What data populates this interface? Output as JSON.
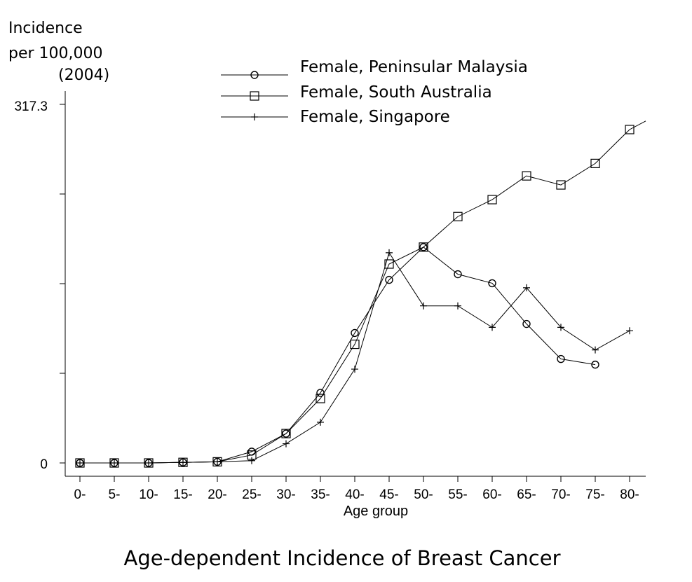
{
  "chart_data": {
    "type": "line",
    "title": "Age-dependent Incidence of Breast Cancer",
    "xlabel": "Age group",
    "ylabel_lines": [
      "Incidence",
      "per 100,000",
      "(2004)"
    ],
    "y_tick_labels": [
      "317.3",
      "0"
    ],
    "ylim": [
      0,
      317.3
    ],
    "grid": false,
    "legend_position": "top-center",
    "categories": [
      "0-",
      "5-",
      "10-",
      "15-",
      "20-",
      "25-",
      "30-",
      "35-",
      "40-",
      "45-",
      "50-",
      "55-",
      "60-",
      "65-",
      "70-",
      "75-",
      "80-"
    ],
    "series": [
      {
        "name": "Female, Peninsular Malaysia",
        "marker": "circle",
        "values": [
          0,
          0,
          0,
          0.5,
          1,
          10,
          26,
          62,
          115,
          162,
          191,
          167,
          159,
          123,
          92,
          87,
          null
        ]
      },
      {
        "name": "Female, South Australia",
        "marker": "square",
        "values": [
          0,
          0,
          0,
          0.5,
          1,
          7,
          26,
          57,
          105,
          176,
          191,
          218,
          233,
          254,
          246,
          265,
          295
        ]
      },
      {
        "name": "Female, Singapore",
        "marker": "plus",
        "values": [
          0,
          0,
          0,
          0.5,
          1,
          2,
          17,
          36,
          83,
          186,
          139,
          139,
          120,
          155,
          120,
          100,
          117
        ]
      }
    ],
    "overflow_tail": {
      "series": "Female, South Australia",
      "value_beyond_last": 311
    }
  }
}
